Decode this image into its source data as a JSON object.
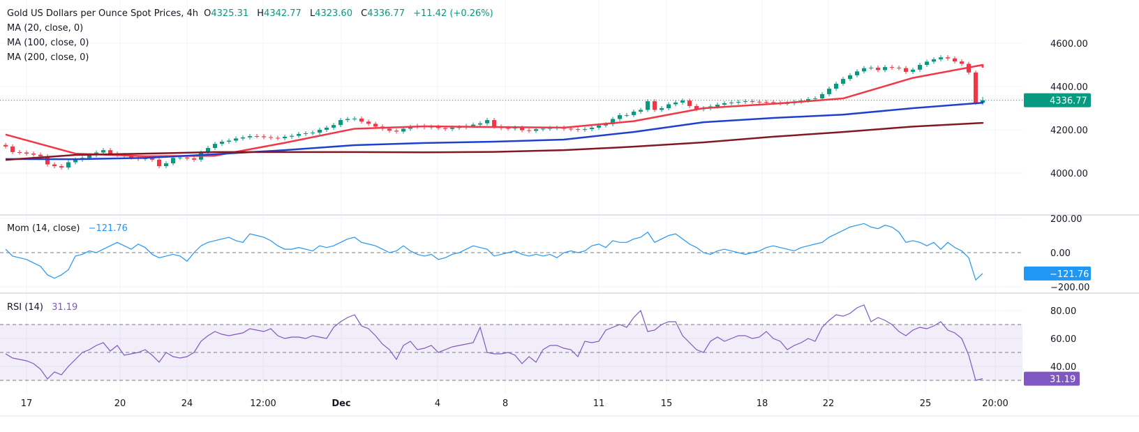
{
  "header": {
    "symbol": "Gold US Dollars per Ounce Spot Prices, 4h",
    "open_label": "O",
    "open": "4325.31",
    "high_label": "H",
    "high": "4342.77",
    "low_label": "L",
    "low": "4323.60",
    "close_label": "C",
    "close": "4336.77",
    "change": "+11.42 (+0.26%)"
  },
  "indicators": {
    "ma20": "MA (20, close, 0)",
    "ma100": "MA (100, close, 0)",
    "ma200": "MA (200, close, 0)",
    "mom_label": "Mom (14, close)",
    "mom_value": "−121.76",
    "rsi_label": "RSI (14)",
    "rsi_value": "31.19"
  },
  "colors": {
    "up": "#089981",
    "down": "#f23645",
    "ma20": "#f23645",
    "ma100": "#1e40d0",
    "ma200": "#801922",
    "mom": "#2196f3",
    "rsi": "#7e57c2"
  },
  "chart_data": [
    {
      "type": "candlestick",
      "title": "Gold US Dollars per Ounce Spot Prices, 4h",
      "ylim": [
        3950,
        4650
      ],
      "y_ticks": [
        "4600.00",
        "4400.00",
        "4200.00",
        "4000.00"
      ],
      "last_price": "4336.77",
      "last_candle": {
        "open": 4325.31,
        "high": 4342.77,
        "low": 4323.6,
        "close": 4336.77
      },
      "close": [
        4123,
        4097,
        4095,
        4090,
        4085,
        4078,
        4040,
        4032,
        4026,
        4050,
        4062,
        4070,
        4082,
        4095,
        4106,
        4090,
        4084,
        4080,
        4072,
        4066,
        4068,
        4062,
        4032,
        4045,
        4070,
        4072,
        4068,
        4062,
        4095,
        4116,
        4135,
        4145,
        4150,
        4160,
        4165,
        4171,
        4170,
        4166,
        4163,
        4161,
        4168,
        4172,
        4181,
        4184,
        4187,
        4200,
        4210,
        4222,
        4245,
        4250,
        4252,
        4238,
        4228,
        4215,
        4205,
        4196,
        4192,
        4205,
        4214,
        4218,
        4212,
        4214,
        4208,
        4204,
        4210,
        4212,
        4218,
        4224,
        4230,
        4245,
        4215,
        4208,
        4206,
        4210,
        4198,
        4195,
        4203,
        4205,
        4208,
        4210,
        4205,
        4203,
        4200,
        4203,
        4210,
        4220,
        4226,
        4250,
        4268,
        4268,
        4284,
        4292,
        4332,
        4292,
        4300,
        4318,
        4326,
        4335,
        4310,
        4295,
        4300,
        4308,
        4316,
        4323,
        4326,
        4329,
        4332,
        4330,
        4329,
        4328,
        4325,
        4322,
        4323,
        4330,
        4335,
        4342,
        4345,
        4365,
        4390,
        4413,
        4435,
        4452,
        4470,
        4485,
        4487,
        4476,
        4490,
        4487,
        4485,
        4468,
        4478,
        4500,
        4515,
        4526,
        4535,
        4530,
        4516,
        4505,
        4465,
        4325.31,
        4336.77
      ],
      "series": [
        {
          "name": "MA (20, close, 0)",
          "every_10_bars": [
            4178,
            4090,
            4078,
            4080,
            4140,
            4205,
            4216,
            4213,
            4210,
            4240,
            4300,
            4320,
            4345,
            4440,
            4500,
            4487
          ]
        },
        {
          "name": "MA (100, close, 0)",
          "every_10_bars": [
            4065,
            4064,
            4070,
            4087,
            4106,
            4129,
            4139,
            4145,
            4155,
            4190,
            4235,
            4255,
            4270,
            4300,
            4325,
            4332
          ]
        },
        {
          "name": "MA (200, close, 0)",
          "every_10_bars": [
            4061,
            4084,
            4090,
            4097,
            4097,
            4097,
            4096,
            4098,
            4106,
            4122,
            4142,
            4168,
            4190,
            4215,
            4232,
            4235
          ]
        }
      ]
    },
    {
      "type": "line",
      "title": "Mom (14, close)",
      "ylim": [
        -230,
        230
      ],
      "y_ticks": [
        "200.00",
        "0.00",
        "−200.00"
      ],
      "last_value": "−121.76",
      "values": [
        20,
        -20,
        -30,
        -40,
        -60,
        -80,
        -130,
        -150,
        -130,
        -100,
        -20,
        -10,
        10,
        0,
        20,
        40,
        60,
        40,
        20,
        50,
        30,
        -10,
        -30,
        -20,
        -10,
        -20,
        -50,
        0,
        40,
        60,
        70,
        80,
        90,
        70,
        60,
        110,
        100,
        90,
        70,
        40,
        20,
        20,
        30,
        20,
        10,
        40,
        30,
        40,
        60,
        80,
        90,
        60,
        50,
        40,
        20,
        0,
        10,
        40,
        10,
        -10,
        -20,
        -10,
        -40,
        -30,
        -10,
        0,
        20,
        40,
        30,
        20,
        -20,
        -10,
        0,
        10,
        -10,
        -20,
        -10,
        -20,
        -10,
        -30,
        0,
        10,
        0,
        10,
        40,
        50,
        30,
        70,
        60,
        60,
        80,
        90,
        120,
        60,
        80,
        100,
        110,
        80,
        50,
        30,
        0,
        -10,
        10,
        20,
        10,
        0,
        -10,
        0,
        10,
        30,
        40,
        30,
        20,
        10,
        30,
        40,
        50,
        60,
        90,
        110,
        130,
        150,
        160,
        170,
        150,
        140,
        160,
        150,
        120,
        60,
        70,
        60,
        40,
        60,
        20,
        60,
        30,
        10,
        -30,
        -160,
        -121.76
      ]
    },
    {
      "type": "line",
      "title": "RSI (14)",
      "ylim": [
        22,
        92
      ],
      "y_ticks": [
        "80.00",
        "60.00",
        "40.00"
      ],
      "bands": [
        70,
        50,
        30
      ],
      "last_value": "31.19",
      "values": [
        49,
        46,
        45,
        44,
        42,
        38,
        31,
        36,
        34,
        40,
        45,
        50,
        52,
        55,
        57,
        51,
        55,
        48,
        49,
        50,
        52,
        48,
        43,
        50,
        47,
        46,
        47,
        50,
        58,
        62,
        65,
        63,
        62,
        63,
        64,
        67,
        66,
        65,
        67,
        62,
        60,
        61,
        61,
        60,
        62,
        61,
        60,
        68,
        72,
        75,
        77,
        69,
        67,
        62,
        56,
        52,
        45,
        55,
        58,
        52,
        53,
        55,
        50,
        52,
        54,
        55,
        56,
        57,
        68,
        50,
        49,
        49,
        50,
        48,
        42,
        47,
        43,
        52,
        55,
        55,
        53,
        52,
        47,
        58,
        57,
        58,
        66,
        68,
        70,
        68,
        75,
        80,
        65,
        66,
        70,
        72,
        72,
        62,
        57,
        52,
        50,
        58,
        61,
        58,
        60,
        62,
        62,
        60,
        61,
        65,
        60,
        58,
        52,
        55,
        57,
        60,
        58,
        68,
        73,
        77,
        76,
        78,
        82,
        84,
        72,
        75,
        73,
        70,
        65,
        62,
        66,
        68,
        67,
        69,
        72,
        66,
        64,
        60,
        48,
        30,
        31.19
      ]
    }
  ],
  "x_axis": {
    "ticks": [
      "17",
      "20",
      "24",
      "12:00",
      "Dec",
      "4",
      "8",
      "11",
      "15",
      "18",
      "22",
      "25",
      "20:00"
    ]
  }
}
